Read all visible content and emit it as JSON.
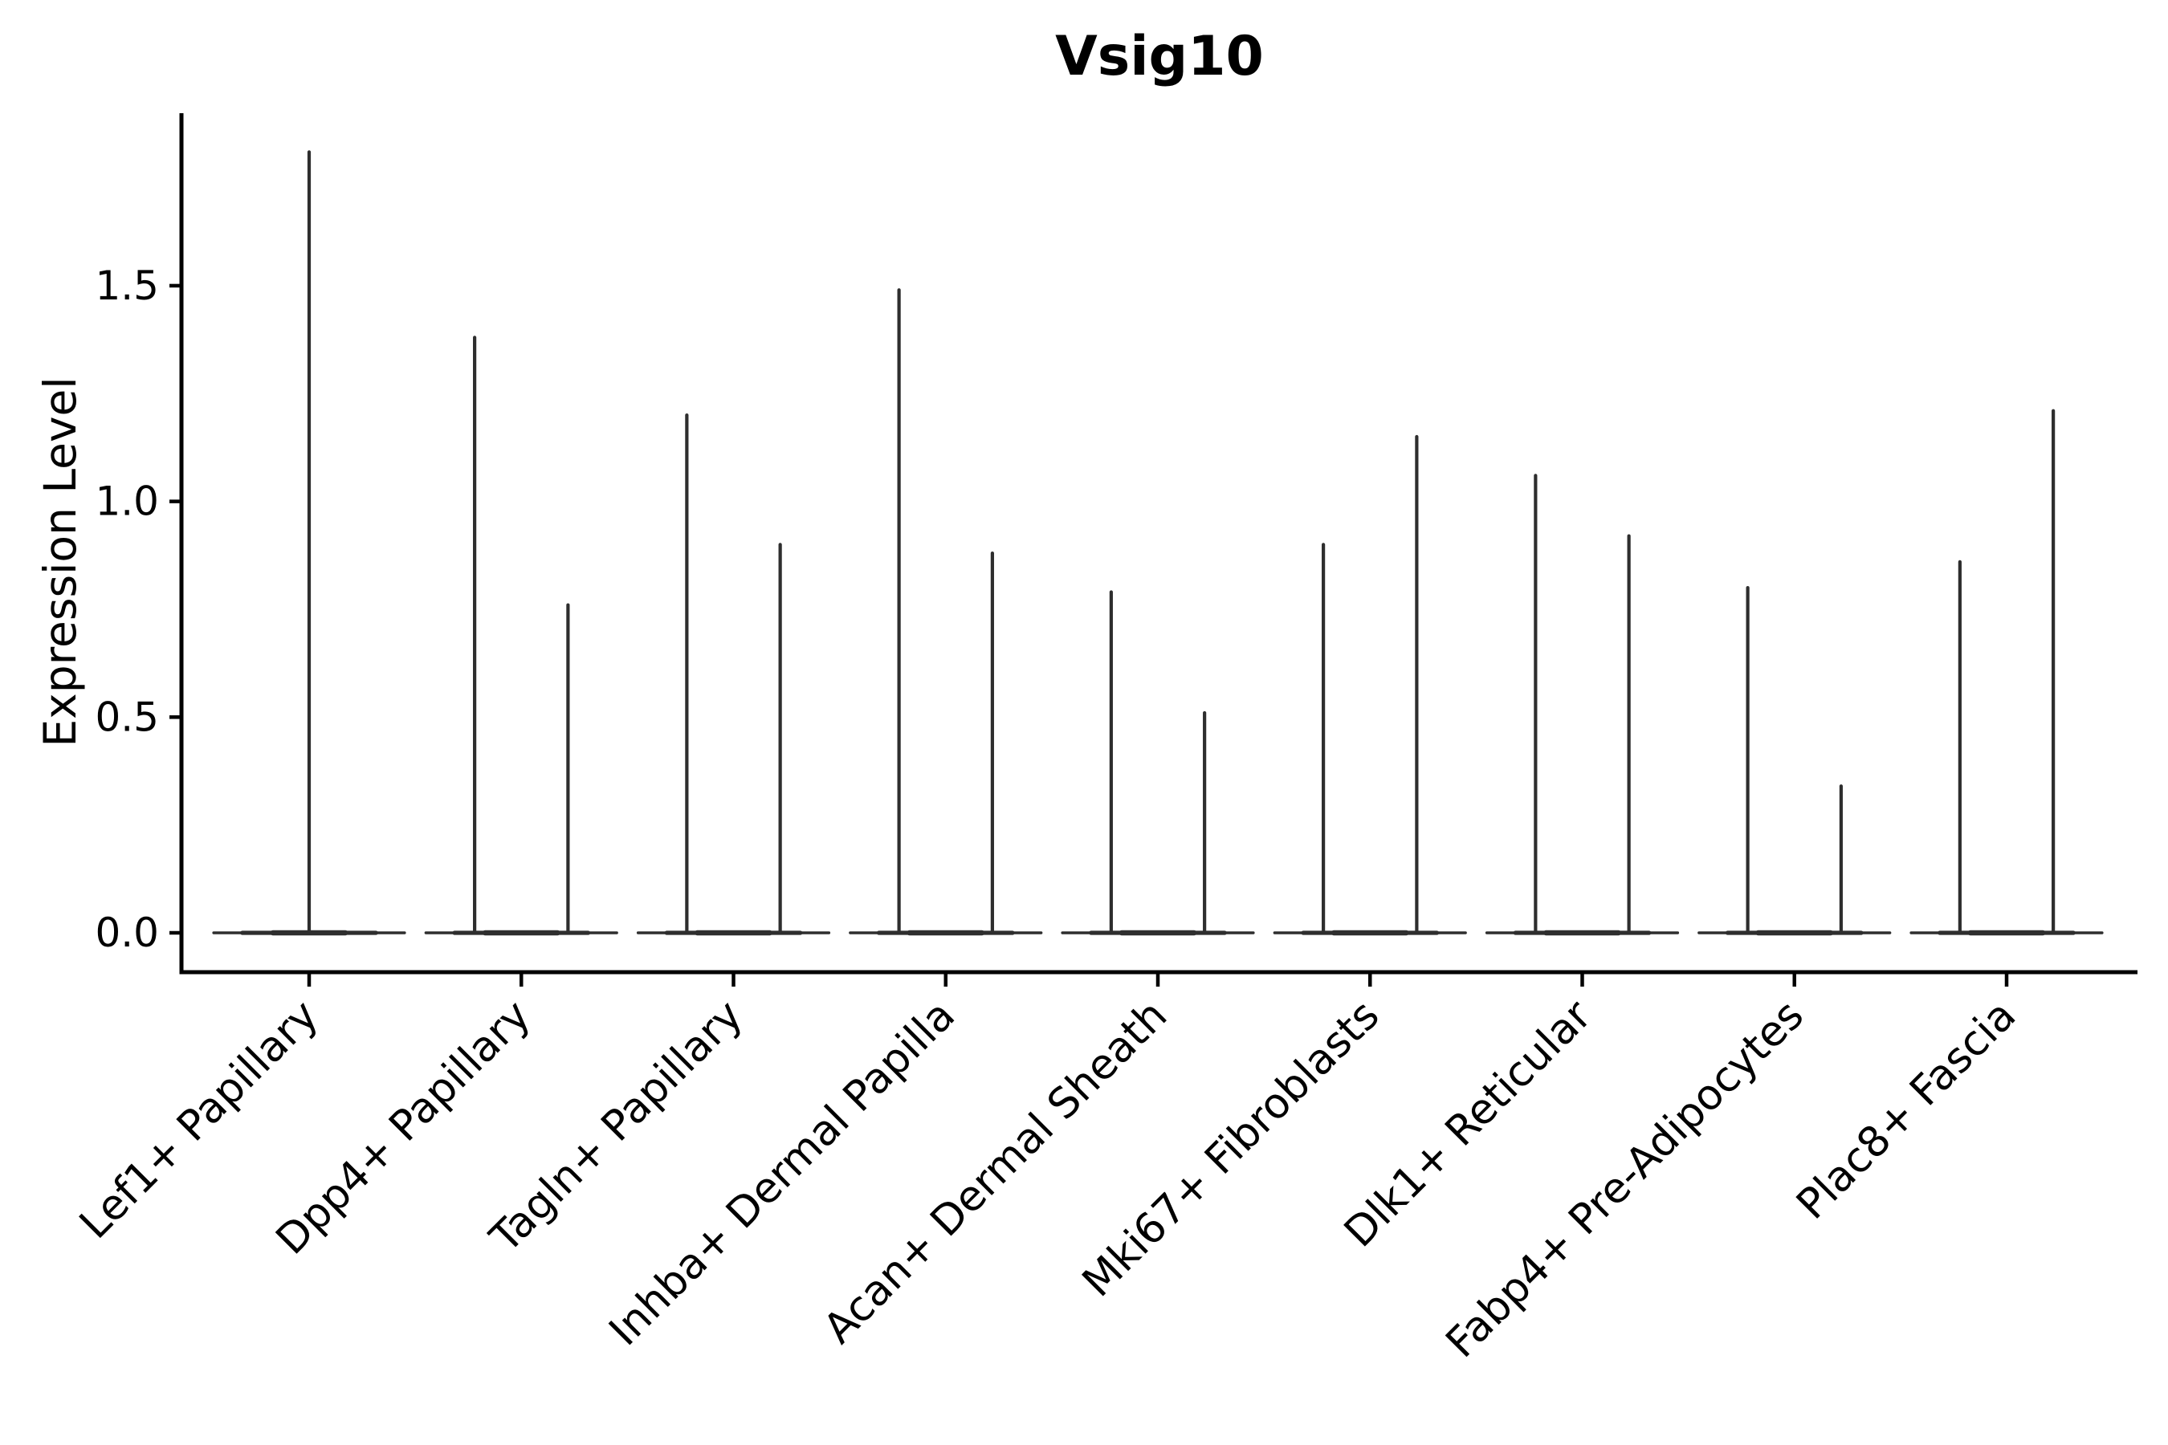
{
  "figure": {
    "background": "#ffffff"
  },
  "chart_data": {
    "type": "violin",
    "title": "Vsig10",
    "ylabel": "Expression Level",
    "xlabel": "",
    "grid": false,
    "legend": null,
    "violin_color": "#2e2e2e",
    "axis_color": "#000000",
    "yticks": [
      "0.0",
      "0.5",
      "1.0",
      "1.5"
    ],
    "ytick_values": [
      0.0,
      0.5,
      1.0,
      1.5
    ],
    "ylim": [
      -0.09,
      1.9
    ],
    "categories": [
      "Lef1+ Papillary",
      "Dpp4+ Papillary",
      "Tagln+ Papillary",
      "Inhba+ Dermal Papilla",
      "Acan+ Dermal Sheath",
      "Mki67+ Fibroblasts",
      "Dlk1+ Reticular",
      "Fabp4+ Pre-Adipocytes",
      "Plac8+ Fascia"
    ],
    "violins": [
      {
        "category": "Lef1+ Papillary",
        "base_halfwidth": 0.45,
        "spikes": [
          {
            "offset": 0.0,
            "max": 1.81
          }
        ]
      },
      {
        "category": "Dpp4+ Papillary",
        "base_halfwidth": 0.45,
        "spikes": [
          {
            "offset": -0.22,
            "max": 1.38
          },
          {
            "offset": 0.22,
            "max": 0.76
          }
        ]
      },
      {
        "category": "Tagln+ Papillary",
        "base_halfwidth": 0.45,
        "spikes": [
          {
            "offset": -0.22,
            "max": 1.2
          },
          {
            "offset": 0.22,
            "max": 0.9
          }
        ]
      },
      {
        "category": "Inhba+ Dermal Papilla",
        "base_halfwidth": 0.45,
        "spikes": [
          {
            "offset": -0.22,
            "max": 1.49
          },
          {
            "offset": 0.22,
            "max": 0.88
          }
        ]
      },
      {
        "category": "Acan+ Dermal Sheath",
        "base_halfwidth": 0.45,
        "spikes": [
          {
            "offset": -0.22,
            "max": 0.79
          },
          {
            "offset": 0.22,
            "max": 0.51
          }
        ]
      },
      {
        "category": "Mki67+ Fibroblasts",
        "base_halfwidth": 0.45,
        "spikes": [
          {
            "offset": -0.22,
            "max": 0.9
          },
          {
            "offset": 0.22,
            "max": 1.15
          }
        ]
      },
      {
        "category": "Dlk1+ Reticular",
        "base_halfwidth": 0.45,
        "spikes": [
          {
            "offset": -0.22,
            "max": 1.06
          },
          {
            "offset": 0.22,
            "max": 0.92
          }
        ]
      },
      {
        "category": "Fabp4+ Pre-Adipocytes",
        "base_halfwidth": 0.45,
        "spikes": [
          {
            "offset": -0.22,
            "max": 0.8
          },
          {
            "offset": 0.22,
            "max": 0.34
          }
        ]
      },
      {
        "category": "Plac8+ Fascia",
        "base_halfwidth": 0.45,
        "spikes": [
          {
            "offset": -0.22,
            "max": 0.86
          },
          {
            "offset": 0.22,
            "max": 1.21
          }
        ]
      }
    ]
  }
}
